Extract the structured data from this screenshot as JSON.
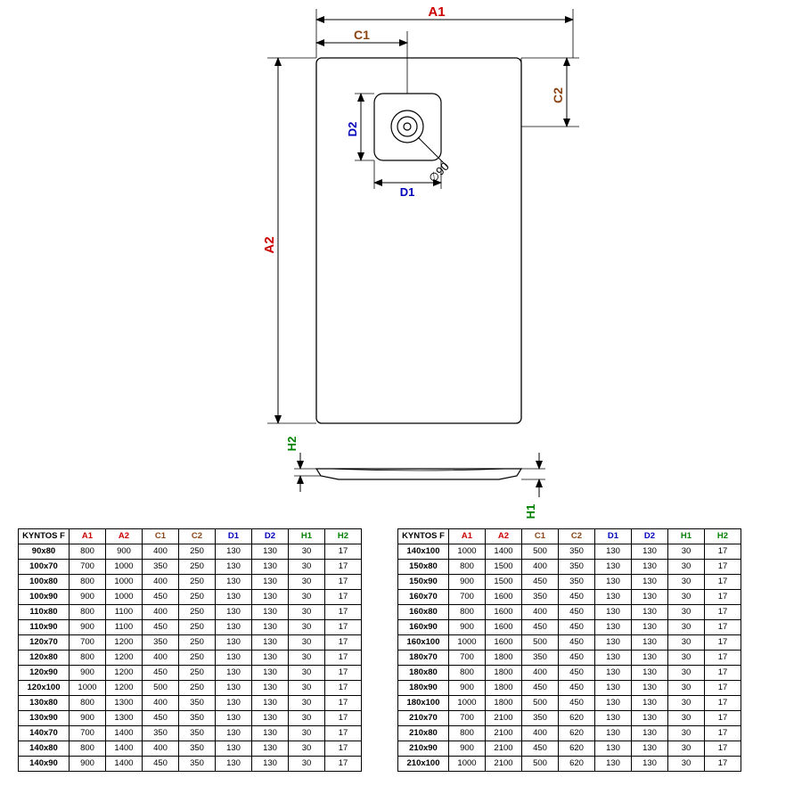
{
  "diagram": {
    "title": "KYNTOS F",
    "labels": {
      "A1": "A1",
      "A2": "A2",
      "C1": "C1",
      "C2": "C2",
      "D1": "D1",
      "D2": "D2",
      "H1": "H1",
      "H2": "H2",
      "diam": "∅90"
    },
    "colors": {
      "A": "#cc0000",
      "C": "#8b4513",
      "D": "#0000bb",
      "H": "#008000",
      "line": "#000000",
      "fill": "#ffffff",
      "bg": "#ffffff",
      "arrow": "#000"
    },
    "stroke_width": 1.2,
    "font_size": 14,
    "small_font": 12
  },
  "table_header": [
    "A1",
    "A2",
    "C1",
    "C2",
    "D1",
    "D2",
    "H1",
    "H2"
  ],
  "header_colors": [
    "#cc0000",
    "#cc0000",
    "#8b4513",
    "#8b4513",
    "#0000bb",
    "#0000bb",
    "#008000",
    "#008000"
  ],
  "table_left": [
    [
      "90x80",
      800,
      900,
      400,
      250,
      130,
      130,
      30,
      17
    ],
    [
      "100x70",
      700,
      1000,
      350,
      250,
      130,
      130,
      30,
      17
    ],
    [
      "100x80",
      800,
      1000,
      400,
      250,
      130,
      130,
      30,
      17
    ],
    [
      "100x90",
      900,
      1000,
      450,
      250,
      130,
      130,
      30,
      17
    ],
    [
      "110x80",
      800,
      1100,
      400,
      250,
      130,
      130,
      30,
      17
    ],
    [
      "110x90",
      900,
      1100,
      450,
      250,
      130,
      130,
      30,
      17
    ],
    [
      "120x70",
      700,
      1200,
      350,
      250,
      130,
      130,
      30,
      17
    ],
    [
      "120x80",
      800,
      1200,
      400,
      250,
      130,
      130,
      30,
      17
    ],
    [
      "120x90",
      900,
      1200,
      450,
      250,
      130,
      130,
      30,
      17
    ],
    [
      "120x100",
      1000,
      1200,
      500,
      250,
      130,
      130,
      30,
      17
    ],
    [
      "130x80",
      800,
      1300,
      400,
      350,
      130,
      130,
      30,
      17
    ],
    [
      "130x90",
      900,
      1300,
      450,
      350,
      130,
      130,
      30,
      17
    ],
    [
      "140x70",
      700,
      1400,
      350,
      350,
      130,
      130,
      30,
      17
    ],
    [
      "140x80",
      800,
      1400,
      400,
      350,
      130,
      130,
      30,
      17
    ],
    [
      "140x90",
      900,
      1400,
      450,
      350,
      130,
      130,
      30,
      17
    ]
  ],
  "table_right": [
    [
      "140x100",
      1000,
      1400,
      500,
      350,
      130,
      130,
      30,
      17
    ],
    [
      "150x80",
      800,
      1500,
      400,
      350,
      130,
      130,
      30,
      17
    ],
    [
      "150x90",
      900,
      1500,
      450,
      350,
      130,
      130,
      30,
      17
    ],
    [
      "160x70",
      700,
      1600,
      350,
      450,
      130,
      130,
      30,
      17
    ],
    [
      "160x80",
      800,
      1600,
      400,
      450,
      130,
      130,
      30,
      17
    ],
    [
      "160x90",
      900,
      1600,
      450,
      450,
      130,
      130,
      30,
      17
    ],
    [
      "160x100",
      1000,
      1600,
      500,
      450,
      130,
      130,
      30,
      17
    ],
    [
      "180x70",
      700,
      1800,
      350,
      450,
      130,
      130,
      30,
      17
    ],
    [
      "180x80",
      800,
      1800,
      400,
      450,
      130,
      130,
      30,
      17
    ],
    [
      "180x90",
      900,
      1800,
      450,
      450,
      130,
      130,
      30,
      17
    ],
    [
      "180x100",
      1000,
      1800,
      500,
      450,
      130,
      130,
      30,
      17
    ],
    [
      "210x70",
      700,
      2100,
      350,
      620,
      130,
      130,
      30,
      17
    ],
    [
      "210x80",
      800,
      2100,
      400,
      620,
      130,
      130,
      30,
      17
    ],
    [
      "210x90",
      900,
      2100,
      450,
      620,
      130,
      130,
      30,
      17
    ],
    [
      "210x100",
      1000,
      2100,
      500,
      620,
      130,
      130,
      30,
      17
    ]
  ]
}
